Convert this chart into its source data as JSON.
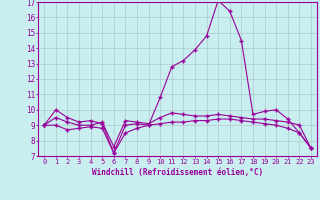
{
  "xlabel": "Windchill (Refroidissement éolien,°C)",
  "x": [
    0,
    1,
    2,
    3,
    4,
    5,
    6,
    7,
    8,
    9,
    10,
    11,
    12,
    13,
    14,
    15,
    16,
    17,
    18,
    19,
    20,
    21,
    22,
    23
  ],
  "line1": [
    9.0,
    10.0,
    9.5,
    9.2,
    9.3,
    9.1,
    7.2,
    9.0,
    9.1,
    9.0,
    10.8,
    12.8,
    13.2,
    13.9,
    14.8,
    17.1,
    16.4,
    14.5,
    9.7,
    9.9,
    10.0,
    9.4,
    8.5,
    7.5
  ],
  "line2": [
    9.0,
    9.0,
    8.7,
    8.8,
    8.9,
    8.8,
    7.2,
    8.5,
    8.8,
    9.0,
    9.1,
    9.2,
    9.2,
    9.3,
    9.3,
    9.4,
    9.4,
    9.3,
    9.2,
    9.1,
    9.0,
    8.8,
    8.5,
    7.5
  ],
  "line3": [
    9.0,
    9.5,
    9.2,
    9.0,
    9.0,
    9.2,
    7.6,
    9.3,
    9.2,
    9.1,
    9.5,
    9.8,
    9.7,
    9.6,
    9.6,
    9.7,
    9.6,
    9.5,
    9.4,
    9.4,
    9.3,
    9.2,
    9.0,
    7.5
  ],
  "line_color": "#990099",
  "bg_color": "#c8eef0",
  "grid_color": "#b0c8cc",
  "ylim": [
    7,
    17
  ],
  "xlim": [
    0,
    23
  ]
}
